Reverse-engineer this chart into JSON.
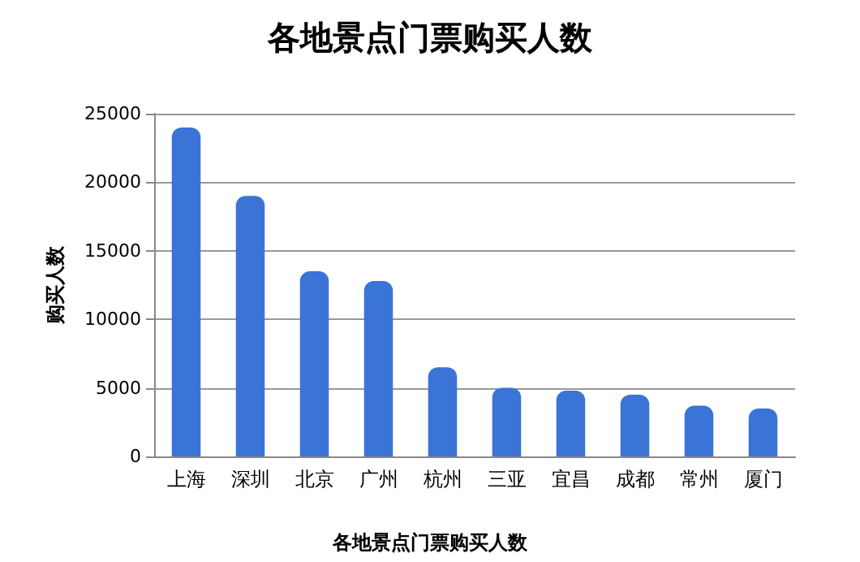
{
  "chart_data": {
    "type": "bar",
    "title": "各地景点门票购买人数",
    "ylabel": "购买人数",
    "categories": [
      "上海",
      "深圳",
      "北京",
      "广州",
      "杭州",
      "三亚",
      "宜昌",
      "成都",
      "常州",
      "厦门"
    ],
    "values": [
      24000,
      19000,
      13500,
      12800,
      6500,
      5000,
      4800,
      4500,
      3700,
      3500
    ],
    "color": "#3a74d6",
    "ylim": [
      0,
      25000
    ],
    "yticks": [
      0,
      5000,
      10000,
      15000,
      20000,
      25000
    ],
    "grid": "y",
    "annotations": [
      "各地景点门票购买人数"
    ]
  }
}
